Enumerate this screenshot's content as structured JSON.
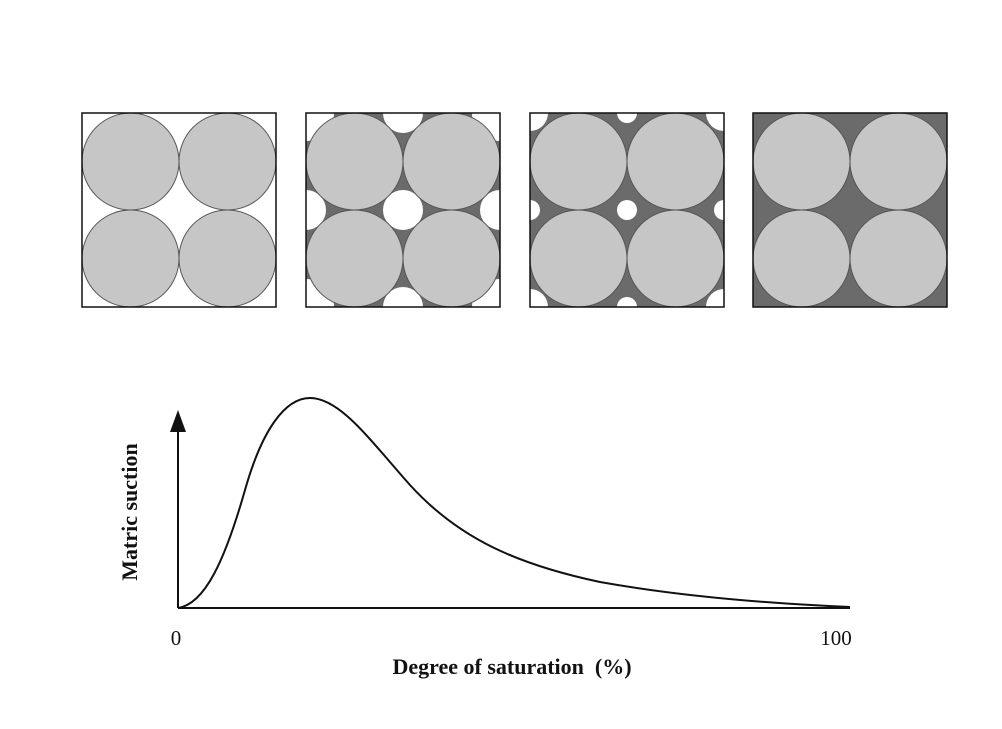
{
  "diagram": {
    "y_axis": {
      "label": "Matric suction"
    },
    "x_axis": {
      "label": "Degree of saturation  (%)",
      "ticks": [
        0,
        100
      ]
    }
  }
}
